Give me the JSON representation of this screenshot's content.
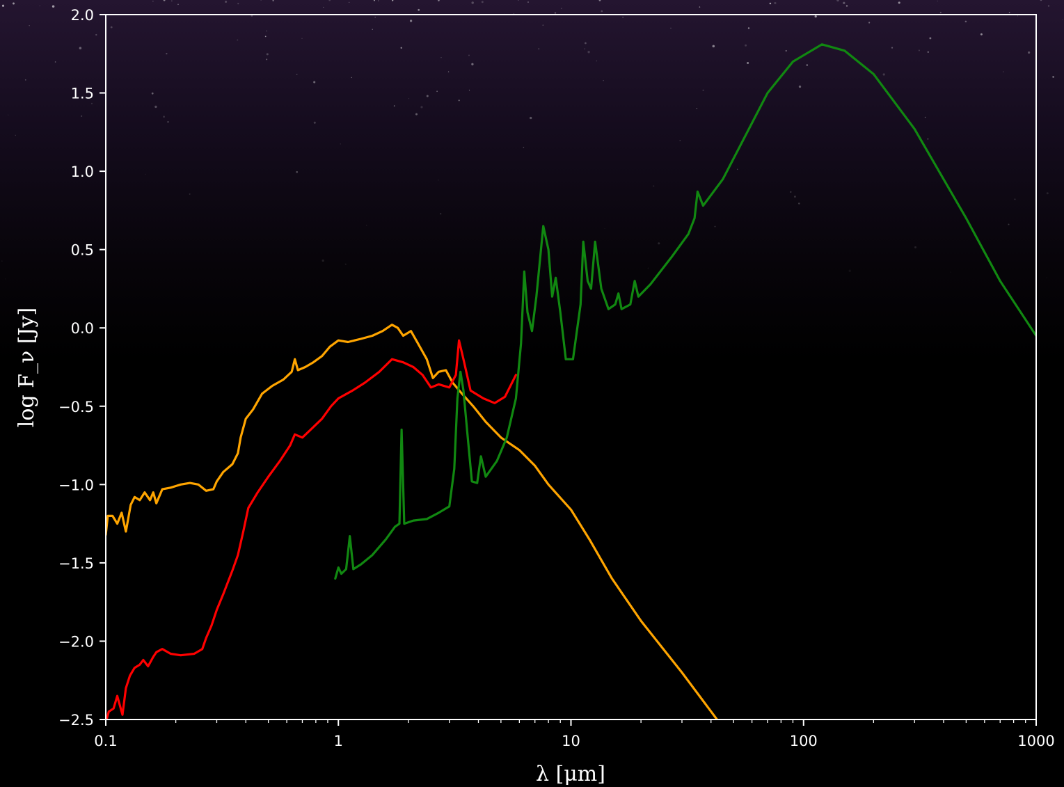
{
  "chart_data": {
    "type": "line",
    "title": "",
    "xlabel": "λ [μm]",
    "ylabel": "log F_ν [Jy]",
    "xscale": "log",
    "xlim": [
      0.1,
      1000
    ],
    "ylim": [
      -2.5,
      2.0
    ],
    "grid": false,
    "legend": "none",
    "xticks": [
      {
        "value": 0.1,
        "label": "0.1"
      },
      {
        "value": 1,
        "label": "1"
      },
      {
        "value": 10,
        "label": "10"
      },
      {
        "value": 100,
        "label": "100"
      },
      {
        "value": 1000,
        "label": "1000"
      }
    ],
    "yticks": [
      {
        "value": 2.0,
        "label": "2.0"
      },
      {
        "value": 1.5,
        "label": "1.5"
      },
      {
        "value": 1.0,
        "label": "1.0"
      },
      {
        "value": 0.5,
        "label": "0.5"
      },
      {
        "value": 0.0,
        "label": "0.0"
      },
      {
        "value": -0.5,
        "label": "−0.5"
      },
      {
        "value": -1.0,
        "label": "−1.0"
      },
      {
        "value": -1.5,
        "label": "−1.5"
      },
      {
        "value": -2.0,
        "label": "−2.0"
      },
      {
        "value": -2.5,
        "label": "−2.5"
      }
    ],
    "series": [
      {
        "color": "#ffa500",
        "points": [
          [
            0.1,
            -1.32
          ],
          [
            0.102,
            -1.2
          ],
          [
            0.107,
            -1.2
          ],
          [
            0.112,
            -1.25
          ],
          [
            0.117,
            -1.18
          ],
          [
            0.122,
            -1.3
          ],
          [
            0.128,
            -1.13
          ],
          [
            0.133,
            -1.08
          ],
          [
            0.14,
            -1.1
          ],
          [
            0.147,
            -1.05
          ],
          [
            0.155,
            -1.1
          ],
          [
            0.16,
            -1.05
          ],
          [
            0.165,
            -1.12
          ],
          [
            0.175,
            -1.03
          ],
          [
            0.19,
            -1.02
          ],
          [
            0.21,
            -1.0
          ],
          [
            0.23,
            -0.99
          ],
          [
            0.25,
            -1.0
          ],
          [
            0.27,
            -1.04
          ],
          [
            0.29,
            -1.03
          ],
          [
            0.3,
            -0.98
          ],
          [
            0.32,
            -0.92
          ],
          [
            0.35,
            -0.87
          ],
          [
            0.37,
            -0.8
          ],
          [
            0.38,
            -0.7
          ],
          [
            0.4,
            -0.58
          ],
          [
            0.43,
            -0.52
          ],
          [
            0.47,
            -0.42
          ],
          [
            0.52,
            -0.37
          ],
          [
            0.58,
            -0.33
          ],
          [
            0.63,
            -0.28
          ],
          [
            0.65,
            -0.2
          ],
          [
            0.67,
            -0.27
          ],
          [
            0.72,
            -0.25
          ],
          [
            0.78,
            -0.22
          ],
          [
            0.85,
            -0.18
          ],
          [
            0.92,
            -0.12
          ],
          [
            1.0,
            -0.08
          ],
          [
            1.1,
            -0.09
          ],
          [
            1.25,
            -0.07
          ],
          [
            1.4,
            -0.05
          ],
          [
            1.55,
            -0.02
          ],
          [
            1.7,
            0.02
          ],
          [
            1.8,
            0.0
          ],
          [
            1.9,
            -0.05
          ],
          [
            2.05,
            -0.02
          ],
          [
            2.2,
            -0.1
          ],
          [
            2.4,
            -0.2
          ],
          [
            2.55,
            -0.32
          ],
          [
            2.7,
            -0.28
          ],
          [
            2.9,
            -0.27
          ],
          [
            3.1,
            -0.35
          ],
          [
            3.4,
            -0.42
          ],
          [
            3.8,
            -0.5
          ],
          [
            4.3,
            -0.6
          ],
          [
            5.0,
            -0.7
          ],
          [
            6.0,
            -0.78
          ],
          [
            7.0,
            -0.88
          ],
          [
            8.0,
            -1.0
          ],
          [
            10.0,
            -1.16
          ],
          [
            12.0,
            -1.35
          ],
          [
            15.0,
            -1.6
          ],
          [
            20.0,
            -1.87
          ],
          [
            30.0,
            -2.2
          ],
          [
            45.0,
            -2.55
          ]
        ]
      },
      {
        "color": "#ff0000",
        "points": [
          [
            0.1,
            -2.52
          ],
          [
            0.103,
            -2.45
          ],
          [
            0.108,
            -2.43
          ],
          [
            0.112,
            -2.35
          ],
          [
            0.118,
            -2.47
          ],
          [
            0.122,
            -2.3
          ],
          [
            0.127,
            -2.22
          ],
          [
            0.133,
            -2.17
          ],
          [
            0.14,
            -2.15
          ],
          [
            0.145,
            -2.12
          ],
          [
            0.152,
            -2.16
          ],
          [
            0.16,
            -2.1
          ],
          [
            0.165,
            -2.07
          ],
          [
            0.175,
            -2.05
          ],
          [
            0.19,
            -2.08
          ],
          [
            0.21,
            -2.09
          ],
          [
            0.24,
            -2.08
          ],
          [
            0.26,
            -2.05
          ],
          [
            0.27,
            -1.98
          ],
          [
            0.285,
            -1.9
          ],
          [
            0.3,
            -1.8
          ],
          [
            0.32,
            -1.7
          ],
          [
            0.35,
            -1.55
          ],
          [
            0.37,
            -1.45
          ],
          [
            0.39,
            -1.3
          ],
          [
            0.41,
            -1.15
          ],
          [
            0.45,
            -1.05
          ],
          [
            0.5,
            -0.95
          ],
          [
            0.56,
            -0.85
          ],
          [
            0.62,
            -0.75
          ],
          [
            0.65,
            -0.68
          ],
          [
            0.7,
            -0.7
          ],
          [
            0.76,
            -0.65
          ],
          [
            0.85,
            -0.58
          ],
          [
            0.93,
            -0.5
          ],
          [
            1.0,
            -0.45
          ],
          [
            1.15,
            -0.4
          ],
          [
            1.3,
            -0.35
          ],
          [
            1.5,
            -0.28
          ],
          [
            1.7,
            -0.2
          ],
          [
            1.9,
            -0.22
          ],
          [
            2.1,
            -0.25
          ],
          [
            2.3,
            -0.3
          ],
          [
            2.5,
            -0.38
          ],
          [
            2.7,
            -0.36
          ],
          [
            3.0,
            -0.38
          ],
          [
            3.2,
            -0.3
          ],
          [
            3.3,
            -0.08
          ],
          [
            3.45,
            -0.2
          ],
          [
            3.7,
            -0.4
          ],
          [
            4.2,
            -0.45
          ],
          [
            4.7,
            -0.48
          ],
          [
            5.2,
            -0.44
          ],
          [
            5.8,
            -0.3
          ]
        ]
      },
      {
        "color": "#118811",
        "points": [
          [
            0.97,
            -1.6
          ],
          [
            1.0,
            -1.53
          ],
          [
            1.03,
            -1.57
          ],
          [
            1.08,
            -1.54
          ],
          [
            1.12,
            -1.33
          ],
          [
            1.16,
            -1.54
          ],
          [
            1.25,
            -1.51
          ],
          [
            1.4,
            -1.45
          ],
          [
            1.6,
            -1.35
          ],
          [
            1.75,
            -1.27
          ],
          [
            1.83,
            -1.25
          ],
          [
            1.87,
            -0.65
          ],
          [
            1.92,
            -1.25
          ],
          [
            2.1,
            -1.23
          ],
          [
            2.4,
            -1.22
          ],
          [
            2.7,
            -1.18
          ],
          [
            3.0,
            -1.14
          ],
          [
            3.15,
            -0.9
          ],
          [
            3.25,
            -0.45
          ],
          [
            3.35,
            -0.28
          ],
          [
            3.45,
            -0.4
          ],
          [
            3.6,
            -0.7
          ],
          [
            3.75,
            -0.98
          ],
          [
            3.95,
            -0.99
          ],
          [
            4.1,
            -0.82
          ],
          [
            4.3,
            -0.95
          ],
          [
            4.8,
            -0.85
          ],
          [
            5.3,
            -0.7
          ],
          [
            5.8,
            -0.45
          ],
          [
            6.1,
            -0.1
          ],
          [
            6.3,
            0.36
          ],
          [
            6.5,
            0.1
          ],
          [
            6.8,
            -0.02
          ],
          [
            7.1,
            0.2
          ],
          [
            7.6,
            0.65
          ],
          [
            8.0,
            0.5
          ],
          [
            8.3,
            0.2
          ],
          [
            8.6,
            0.32
          ],
          [
            9.0,
            0.1
          ],
          [
            9.5,
            -0.2
          ],
          [
            10.2,
            -0.2
          ],
          [
            11.0,
            0.15
          ],
          [
            11.3,
            0.55
          ],
          [
            11.8,
            0.3
          ],
          [
            12.2,
            0.25
          ],
          [
            12.7,
            0.55
          ],
          [
            13.5,
            0.25
          ],
          [
            14.5,
            0.12
          ],
          [
            15.5,
            0.15
          ],
          [
            16.0,
            0.22
          ],
          [
            16.5,
            0.12
          ],
          [
            18.0,
            0.15
          ],
          [
            18.8,
            0.3
          ],
          [
            19.5,
            0.2
          ],
          [
            22.0,
            0.28
          ],
          [
            27.0,
            0.45
          ],
          [
            32.0,
            0.6
          ],
          [
            34.0,
            0.7
          ],
          [
            35.0,
            0.87
          ],
          [
            37.0,
            0.78
          ],
          [
            45.0,
            0.95
          ],
          [
            55.0,
            1.2
          ],
          [
            70.0,
            1.5
          ],
          [
            90.0,
            1.7
          ],
          [
            120.0,
            1.81
          ],
          [
            150.0,
            1.77
          ],
          [
            200.0,
            1.62
          ],
          [
            300.0,
            1.27
          ],
          [
            500.0,
            0.7
          ],
          [
            700.0,
            0.3
          ],
          [
            1000.0,
            -0.05
          ]
        ]
      }
    ]
  }
}
